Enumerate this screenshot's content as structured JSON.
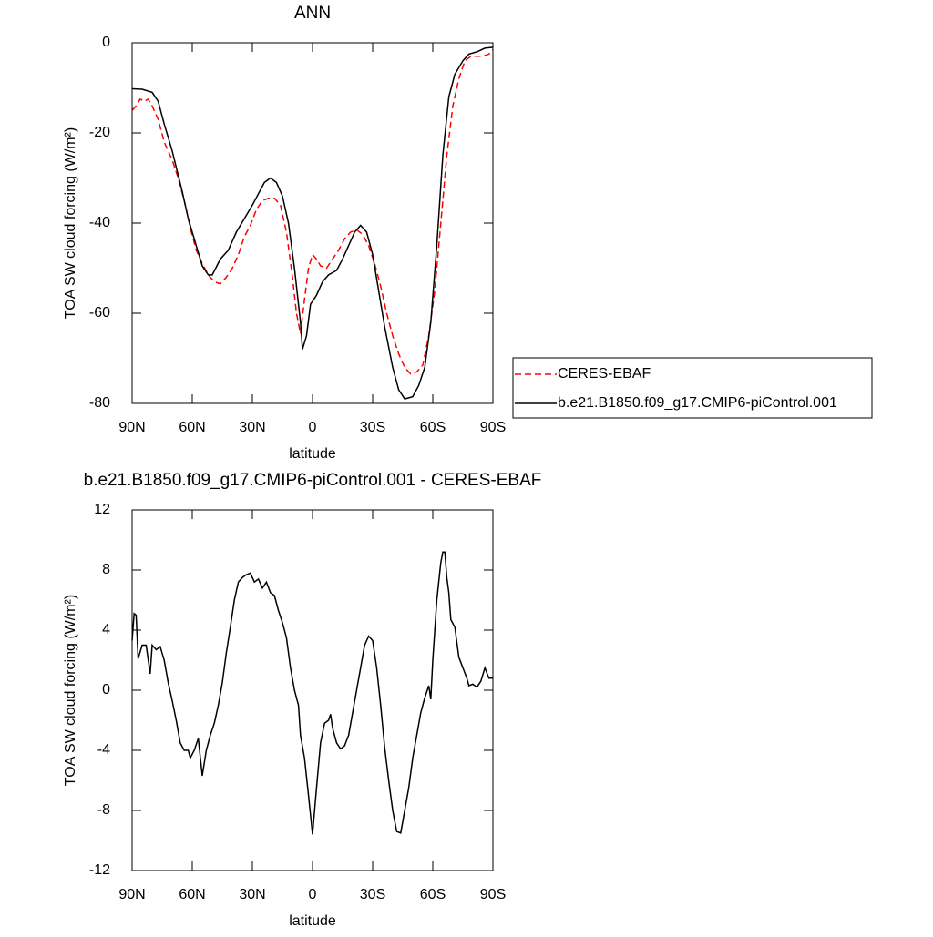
{
  "chart_data": [
    {
      "type": "line",
      "title": "ANN",
      "xlabel": "latitude",
      "ylabel": "TOA SW cloud forcing (W/m²)",
      "xlim": [
        90,
        -90
      ],
      "ylim": [
        -80,
        0
      ],
      "xticks": [
        {
          "value": 90,
          "label": "90N"
        },
        {
          "value": 60,
          "label": "60N"
        },
        {
          "value": 30,
          "label": "30N"
        },
        0,
        {
          "value": -30,
          "label": "30S"
        },
        {
          "value": -60,
          "label": "60S"
        },
        {
          "value": -90,
          "label": "90S"
        }
      ],
      "yticks": [
        0,
        -20,
        -40,
        -60,
        -80
      ],
      "legend": "right",
      "series": [
        {
          "name": "CERES-EBAF",
          "color": "#ff0000",
          "dash": true,
          "x": [
            90,
            88,
            86,
            84,
            82,
            80,
            77,
            74,
            70,
            67,
            64,
            61,
            58,
            55,
            52,
            49,
            46,
            43,
            40,
            37,
            34,
            31,
            28,
            25,
            22,
            19,
            16,
            13,
            10,
            8,
            6,
            4,
            2,
            0,
            -2,
            -4,
            -7,
            -10,
            -13,
            -16,
            -19,
            -22,
            -25,
            -28,
            -31,
            -34,
            -37,
            -40,
            -43,
            -46,
            -49,
            -52,
            -55,
            -58,
            -61,
            -64,
            -67,
            -70,
            -73,
            -76,
            -79,
            -82,
            -85,
            -88,
            -90
          ],
          "values": [
            -15,
            -14,
            -12.5,
            -13,
            -12.5,
            -14,
            -17,
            -22,
            -26,
            -30,
            -35,
            -41,
            -46,
            -49,
            -51.5,
            -53,
            -53.5,
            -52,
            -50,
            -47,
            -43,
            -40.5,
            -37,
            -35,
            -34.5,
            -34.5,
            -36,
            -42,
            -52,
            -60,
            -64.5,
            -57,
            -50,
            -47,
            -48,
            -49.5,
            -50,
            -48,
            -46,
            -43.5,
            -42,
            -41.5,
            -42.5,
            -45,
            -49,
            -54,
            -60,
            -65,
            -69,
            -72,
            -73.5,
            -73,
            -71.5,
            -65,
            -55,
            -40,
            -25,
            -14,
            -8,
            -4,
            -3,
            -3,
            -3,
            -2.5,
            -1.5
          ]
        },
        {
          "name": "b.e21.B1850.f09_g17.CMIP6-piControl.001",
          "color": "#000000",
          "dash": false,
          "x": [
            90,
            85,
            80,
            77,
            74,
            70,
            65,
            62,
            58,
            55,
            52,
            50,
            46,
            42,
            38,
            34,
            30,
            27,
            24,
            21,
            18,
            15,
            12,
            9,
            6,
            5,
            3,
            1,
            -2,
            -5,
            -8,
            -12,
            -15,
            -18,
            -21,
            -24,
            -27,
            -30,
            -33,
            -36,
            -40,
            -43,
            -46,
            -50,
            -53,
            -56,
            -59,
            -62,
            -65,
            -68,
            -71,
            -75,
            -78,
            -82,
            -86,
            -90
          ],
          "values": [
            -10.2,
            -10.3,
            -11,
            -13,
            -18,
            -24,
            -33,
            -39,
            -45,
            -49.5,
            -51.5,
            -51.5,
            -48,
            -46,
            -42,
            -39,
            -36,
            -33.5,
            -31,
            -30,
            -31,
            -34,
            -40,
            -50,
            -62,
            -68,
            -65,
            -58,
            -56,
            -53,
            -51.5,
            -50.5,
            -48,
            -45,
            -42,
            -40.5,
            -42,
            -47,
            -55,
            -63,
            -72,
            -77,
            -79,
            -78.5,
            -76,
            -72,
            -62,
            -45,
            -25,
            -12,
            -7,
            -4,
            -2.5,
            -2,
            -1.2,
            -1
          ]
        }
      ]
    },
    {
      "type": "line",
      "title": "b.e21.B1850.f09_g17.CMIP6-piControl.001 - CERES-EBAF",
      "xlabel": "latitude",
      "ylabel": "TOA SW cloud forcing (W/m²)",
      "xlim": [
        90,
        -90
      ],
      "ylim": [
        -12,
        12
      ],
      "xticks": [
        {
          "value": 90,
          "label": "90N"
        },
        {
          "value": 60,
          "label": "60N"
        },
        {
          "value": 30,
          "label": "30N"
        },
        0,
        {
          "value": -30,
          "label": "30S"
        },
        {
          "value": -60,
          "label": "60S"
        },
        {
          "value": -90,
          "label": "90S"
        }
      ],
      "yticks": [
        12,
        8,
        4,
        0,
        -4,
        -8,
        -12
      ],
      "series": [
        {
          "color": "#000000",
          "dash": false,
          "x": [
            90,
            89,
            88,
            87,
            85,
            83,
            81,
            80,
            78,
            76,
            74,
            72,
            70,
            68,
            66,
            64,
            62,
            61,
            59,
            57,
            55,
            53,
            51,
            49,
            47,
            45,
            43,
            41,
            39,
            37,
            35,
            33,
            31,
            29,
            27,
            25,
            23,
            21,
            19,
            17,
            15,
            13,
            11,
            9,
            7,
            6,
            4,
            2,
            0,
            -2,
            -4,
            -6,
            -8,
            -9,
            -10,
            -12,
            -14,
            -16,
            -18,
            -20,
            -22,
            -24,
            -26,
            -28,
            -30,
            -32,
            -34,
            -36,
            -38,
            -40,
            -42,
            -44,
            -46,
            -48,
            -50,
            -52,
            -54,
            -56,
            -58,
            -59,
            -60,
            -62,
            -64,
            -65,
            -66,
            -67,
            -68,
            -69,
            -71,
            -73,
            -75,
            -77,
            -78,
            -80,
            -82,
            -84,
            -86,
            -88,
            -90
          ],
          "values": [
            3.3,
            5.1,
            5,
            2.1,
            3,
            3,
            1.1,
            3,
            2.7,
            2.9,
            2,
            0.5,
            -0.7,
            -2,
            -3.5,
            -4,
            -4,
            -4.5,
            -4,
            -3.2,
            -5.7,
            -4,
            -3,
            -2.2,
            -1,
            0.5,
            2.5,
            4.2,
            6,
            7.2,
            7.5,
            7.7,
            7.8,
            7.2,
            7.4,
            6.8,
            7.2,
            6.5,
            6.3,
            5.3,
            4.5,
            3.5,
            1.5,
            0,
            -1,
            -3,
            -4.5,
            -7,
            -9.6,
            -6.5,
            -3.5,
            -2.2,
            -2,
            -1.6,
            -2.5,
            -3.5,
            -3.9,
            -3.7,
            -3,
            -1.5,
            0,
            1.5,
            3,
            3.6,
            3.3,
            1.5,
            -1,
            -3.8,
            -6,
            -8,
            -9.4,
            -9.5,
            -8,
            -6.5,
            -4.5,
            -3,
            -1.5,
            -0.5,
            0.3,
            -0.6,
            2,
            6,
            8.5,
            9.2,
            9.2,
            7.5,
            6.5,
            4.7,
            4.2,
            2.2,
            1.5,
            0.8,
            0.3,
            0.4,
            0.2,
            0.6,
            1.5,
            0.8,
            0.8
          ]
        }
      ]
    }
  ]
}
